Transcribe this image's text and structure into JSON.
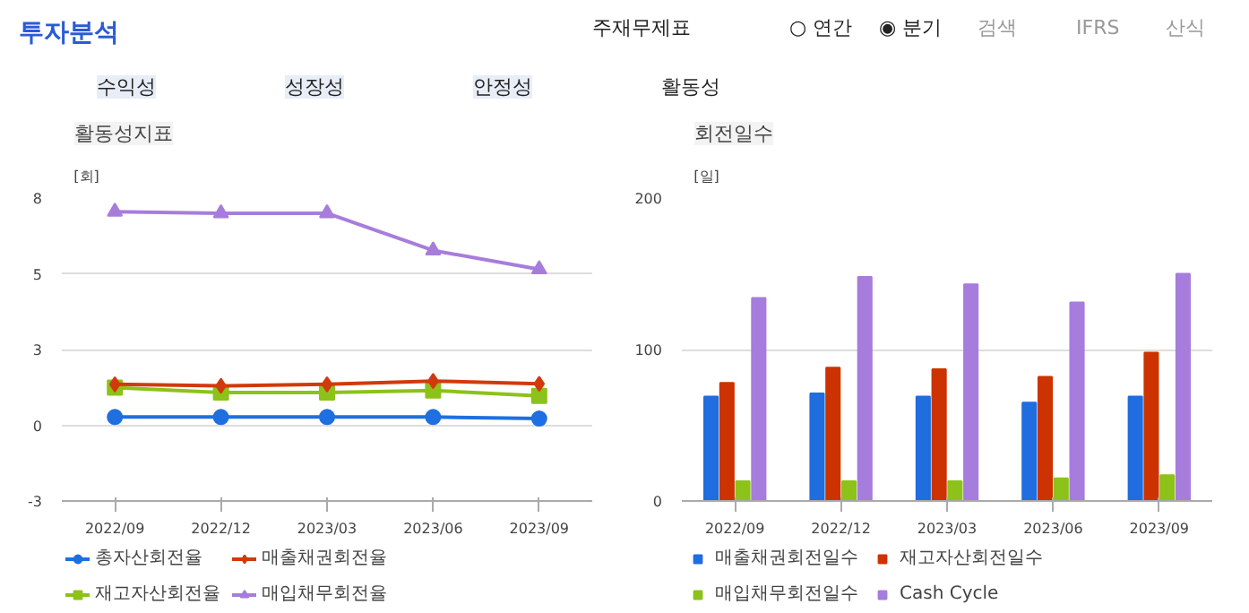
{
  "chart_data": [
    {
      "type": "other",
      "title": "투자분석",
      "annotations": [
        "주재무제표",
        "○ 연간",
        "◉ 분기",
        "검색",
        "IFRS",
        "산식",
        "수익성",
        "성장성",
        "안정성",
        "활동성"
      ]
    },
    {
      "type": "line",
      "title": "활동성지표",
      "ylabel": "[회]",
      "categories": [
        "2022/09",
        "2022/12",
        "2023/03",
        "2023/06",
        "2023/09"
      ],
      "ylim": [
        -2.5,
        7.5
      ],
      "yticks": [
        {
          "value": -2.5,
          "label": "-3"
        },
        0,
        {
          "value": 2.5,
          "label": "3"
        },
        {
          "value": 5,
          "label": "5"
        },
        {
          "value": 7.5,
          "label": "8"
        }
      ],
      "grid": "y",
      "legend": "bottom",
      "series": [
        {
          "name": "총자산회전율",
          "color": "#1f6fe0",
          "marker": "circle",
          "values": [
            0.27,
            0.27,
            0.27,
            0.27,
            0.22
          ]
        },
        {
          "name": "매출채권회전율",
          "color": "#d13a0c",
          "marker": "diamond",
          "values": [
            1.35,
            1.3,
            1.35,
            1.46,
            1.37
          ]
        },
        {
          "name": "재고자산회전율",
          "color": "#8cc21a",
          "marker": "square",
          "values": [
            1.24,
            1.08,
            1.08,
            1.15,
            0.97
          ]
        },
        {
          "name": "매입채무회전율",
          "color": "#a77ddb",
          "marker": "triangle",
          "values": [
            7.05,
            7.0,
            7.0,
            5.77,
            5.15
          ]
        }
      ]
    },
    {
      "type": "bar",
      "title": "회전일수",
      "ylabel": "[일]",
      "categories": [
        "2022/09",
        "2022/12",
        "2023/03",
        "2023/06",
        "2023/09"
      ],
      "ylim": [
        0,
        200
      ],
      "yticks": [
        0,
        100,
        200
      ],
      "grid": "y",
      "legend": "bottom",
      "series": [
        {
          "name": "매출채권회전일수",
          "color": "#1f6ddf",
          "values": [
            69,
            71,
            69,
            65,
            69
          ]
        },
        {
          "name": "재고자산회전일수",
          "color": "#cc3300",
          "values": [
            78,
            88,
            87,
            82,
            98
          ]
        },
        {
          "name": "매입채무회전일수",
          "color": "#8cc21a",
          "values": [
            13,
            13,
            13,
            15,
            17
          ]
        },
        {
          "name": "Cash Cycle",
          "color": "#a67cdc",
          "values": [
            134,
            148,
            143,
            131,
            150
          ]
        }
      ]
    }
  ]
}
